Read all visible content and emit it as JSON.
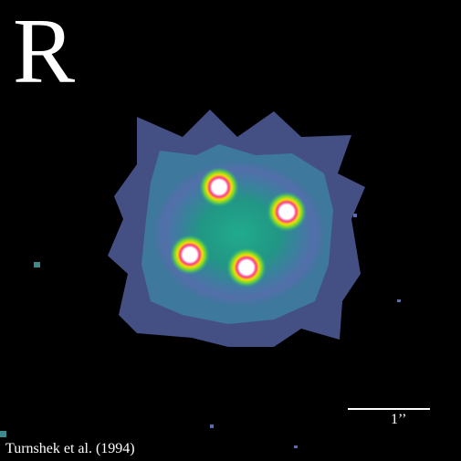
{
  "image": {
    "band_label": "R",
    "scale_label": "1’’",
    "credit": "Turnshek et al. (1994)",
    "colors": {
      "background": "#000000",
      "halo_outer": "#5b6bb0",
      "halo_inner": "#1fae8c",
      "core_ring": "#f0e000",
      "core_mid": "#ff3a8a",
      "core_center": "#ffffff"
    },
    "objects": [
      {
        "name": "quasar-image-top"
      },
      {
        "name": "quasar-image-right"
      },
      {
        "name": "quasar-image-left"
      },
      {
        "name": "quasar-image-bottom"
      }
    ]
  }
}
